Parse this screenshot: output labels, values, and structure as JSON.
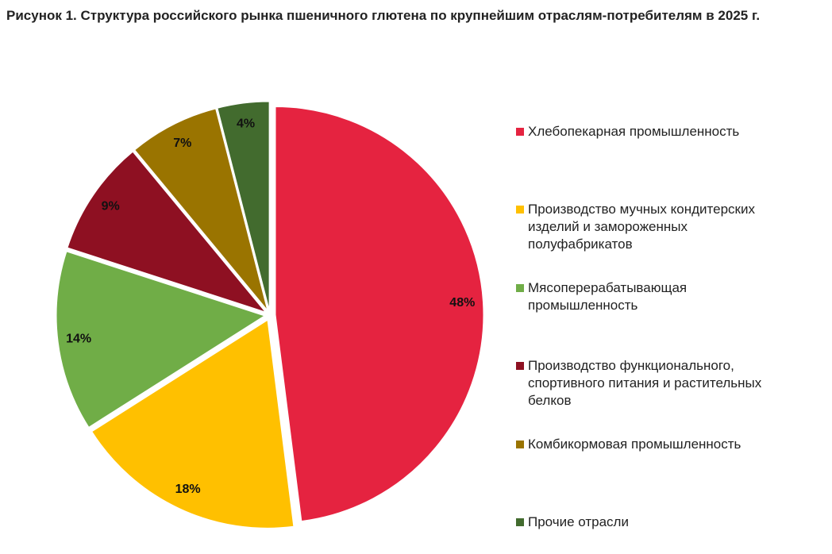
{
  "chart_data": {
    "type": "pie",
    "title": "Рисунок 1. Структура российского рынка пшеничного глютена по крупнейшим отраслям-потребителям в 2025 г.",
    "categories": [
      "Хлебопекарная промышленность",
      "Производство мучных кондитерских изделий и замороженных полуфабрикатов",
      "Мясоперерабатывающая промышленность",
      "Производство функционального, спортивного питания и растительных белков",
      "Комбикормовая промышленность",
      "Прочие отрасли"
    ],
    "values": [
      48,
      18,
      14,
      9,
      7,
      4
    ],
    "value_labels": [
      "48%",
      "18%",
      "14%",
      "9%",
      "7%",
      "4%"
    ],
    "colors": [
      "#e52340",
      "#ffc000",
      "#70ad47",
      "#8e1022",
      "#9a7400",
      "#426b2e"
    ],
    "legend": "right"
  }
}
